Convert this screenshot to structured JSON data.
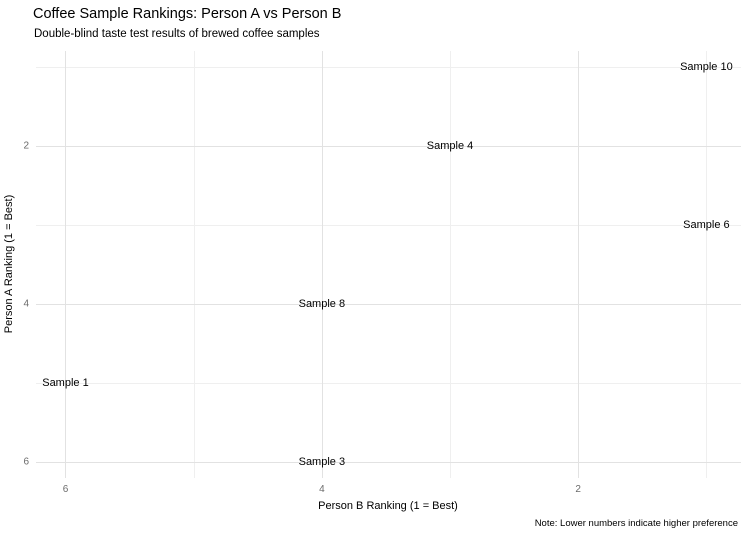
{
  "header": {
    "title": "Coffee Sample Rankings: Person A vs Person B",
    "subtitle": "Double-blind taste test results of brewed coffee samples"
  },
  "chart_data": {
    "type": "scatter",
    "render_style": "text-labels-only",
    "title": "Coffee Sample Rankings: Person A vs Person B",
    "subtitle": "Double-blind taste test results of brewed coffee samples",
    "xlabel": "Person B Ranking (1 = Best)",
    "ylabel": "Person A Ranking (1 = Best)",
    "caption": "Note: Lower numbers indicate higher preference",
    "x_axis": {
      "reversed": true,
      "lim": [
        6.23,
        0.73
      ],
      "major_ticks": [
        6,
        4,
        2
      ],
      "minor_gridlines": [
        5,
        3,
        1
      ]
    },
    "y_axis": {
      "reversed": true,
      "lim": [
        0.8,
        6.2
      ],
      "major_ticks": [
        2,
        4,
        6
      ],
      "minor_gridlines": [
        1,
        3,
        5
      ]
    },
    "points": [
      {
        "label": "Sample 10",
        "person_b": 1,
        "person_a": 1
      },
      {
        "label": "Sample 4",
        "person_b": 3,
        "person_a": 2
      },
      {
        "label": "Sample 6",
        "person_b": 1,
        "person_a": 3
      },
      {
        "label": "Sample 8",
        "person_b": 4,
        "person_a": 4
      },
      {
        "label": "Sample 1",
        "person_b": 6,
        "person_a": 5
      },
      {
        "label": "Sample 3",
        "person_b": 4,
        "person_a": 6
      }
    ],
    "legend": "none",
    "grid": true,
    "colors": {
      "background": "#ffffff",
      "grid_major": "#e2e2e2",
      "grid_minor": "#efefef",
      "tick_text": "#6b6b6b",
      "label_text": "#000000",
      "title_text": "#000000"
    }
  }
}
